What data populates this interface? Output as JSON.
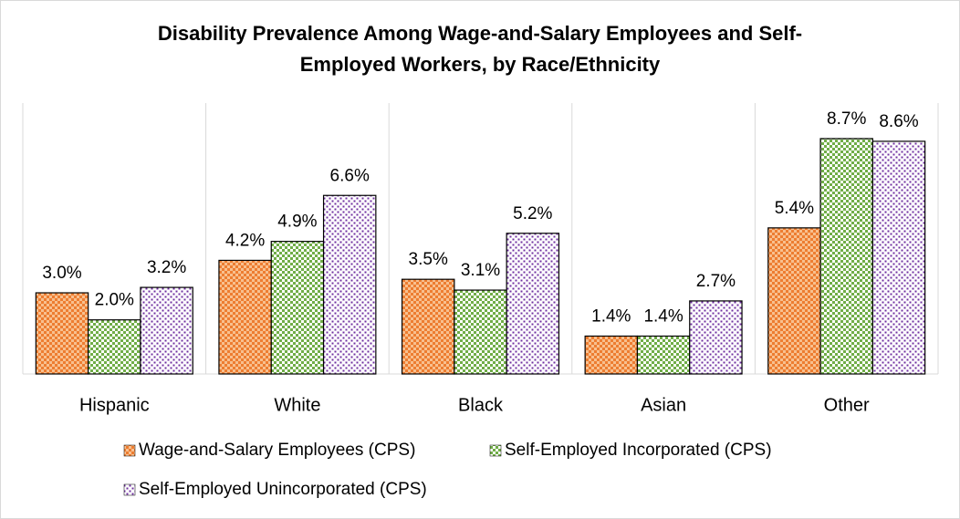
{
  "chart_data": {
    "type": "bar",
    "title": [
      "Disability Prevalence Among Wage-and-Salary Employees and Self-",
      "Employed Workers, by Race/Ethnicity"
    ],
    "categories": [
      "Hispanic",
      "White",
      "Black",
      "Asian",
      "Other"
    ],
    "series": [
      {
        "name": "Wage-and-Salary Employees (CPS)",
        "color": "#ed7d31",
        "values": [
          3.0,
          4.2,
          3.5,
          1.4,
          5.4
        ],
        "value_labels": [
          "3.0%",
          "4.2%",
          "3.5%",
          "1.4%",
          "5.4%"
        ]
      },
      {
        "name": "Self-Employed Incorporated (CPS)",
        "color": "#70ad47",
        "values": [
          2.0,
          4.9,
          3.1,
          1.4,
          8.7
        ],
        "value_labels": [
          "2.0%",
          "4.9%",
          "3.1%",
          "1.4%",
          "8.7%"
        ]
      },
      {
        "name": "Self-Employed Unincorporated (CPS)",
        "color": "#7030a0",
        "values": [
          3.2,
          6.6,
          5.2,
          2.7,
          8.6
        ],
        "value_labels": [
          "3.2%",
          "6.6%",
          "5.2%",
          "2.7%",
          "8.6%"
        ]
      }
    ],
    "legend": "bottom"
  }
}
